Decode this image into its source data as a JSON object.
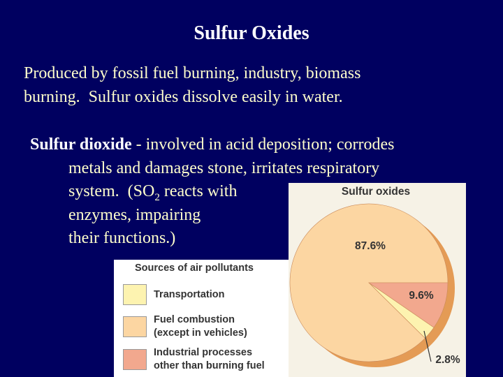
{
  "slide": {
    "title": "Sulfur Oxides",
    "intro_lines": [
      "Produced by fossil fuel burning, industry, biomass",
      "burning.  Sulfur oxides dissolve easily in water."
    ],
    "bullet": {
      "term": "Sulfur dioxide",
      "line1": " - involved in acid deposition; corrodes",
      "line2": "metals and damages stone, irritates respiratory",
      "line3_before": "system.  (SO",
      "line3_sub": "2",
      "line3_after": " reacts with",
      "line4": "enzymes, impairing",
      "line5": "their functions.)"
    }
  },
  "chart_data": {
    "type": "pie",
    "title": "Sulfur oxides",
    "legend_title": "Sources of air pollutants",
    "categories": [
      "Transportation",
      "Fuel combustion\n(except in vehicles)",
      "Industrial processes\nother than burning fuel"
    ],
    "values": [
      2.8,
      87.6,
      9.6
    ],
    "value_labels": [
      "2.8%",
      "87.6%",
      "9.6%"
    ],
    "colors": [
      "#fdf3b0",
      "#fcd6a2",
      "#f2a88e"
    ]
  }
}
